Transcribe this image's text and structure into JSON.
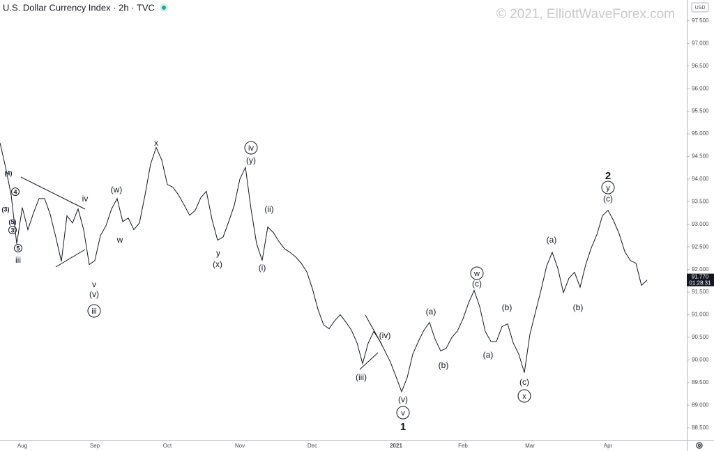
{
  "chart_data": {
    "type": "line",
    "title": "U.S. Dollar Currency Index · 2h · TVC",
    "watermark": "© 2021, ElliottWaveForex.com",
    "currency": "USD",
    "color": "#131722",
    "categories": [
      null,
      null,
      null,
      null,
      "Aug",
      null,
      null,
      null,
      null,
      null,
      null,
      null,
      null,
      null,
      null,
      null,
      null,
      "Sep",
      null,
      null,
      null,
      null,
      null,
      null,
      null,
      null,
      null,
      null,
      null,
      null,
      "Oct",
      null,
      null,
      null,
      null,
      null,
      null,
      null,
      null,
      null,
      null,
      null,
      null,
      "Nov",
      null,
      null,
      null,
      null,
      null,
      null,
      null,
      null,
      null,
      null,
      null,
      null,
      "Dec",
      null,
      null,
      null,
      null,
      null,
      null,
      null,
      null,
      null,
      null,
      null,
      null,
      null,
      null,
      "2021",
      null,
      null,
      null,
      null,
      null,
      null,
      null,
      null,
      null,
      null,
      null,
      "Feb",
      null,
      null,
      null,
      null,
      null,
      null,
      null,
      null,
      null,
      null,
      null,
      "Mar",
      null,
      null,
      null,
      null,
      null,
      null,
      null,
      null,
      null,
      null,
      null,
      null,
      null,
      "Apr",
      null,
      null,
      null,
      null,
      null,
      null,
      null
    ],
    "values": [
      94.8,
      94.26,
      93.65,
      92.57,
      93.37,
      92.88,
      93.25,
      93.57,
      93.57,
      93.22,
      92.72,
      92.18,
      93.19,
      93.03,
      93.34,
      92.88,
      92.11,
      92.2,
      92.75,
      92.97,
      93.34,
      93.57,
      93.06,
      93.14,
      92.88,
      93.03,
      93.65,
      94.33,
      94.7,
      94.42,
      93.88,
      93.82,
      93.65,
      93.43,
      93.2,
      93.31,
      93.59,
      93.73,
      93.11,
      92.65,
      92.72,
      93.06,
      93.42,
      94.0,
      94.26,
      93.34,
      92.57,
      92.2,
      92.94,
      92.82,
      92.62,
      92.46,
      92.38,
      92.28,
      92.14,
      91.95,
      91.58,
      91.12,
      90.78,
      90.69,
      90.87,
      91.0,
      90.84,
      90.66,
      90.38,
      89.92,
      90.37,
      90.63,
      90.44,
      90.2,
      89.95,
      89.63,
      89.3,
      89.61,
      90.13,
      90.41,
      90.66,
      90.83,
      90.46,
      90.2,
      90.26,
      90.5,
      90.64,
      90.91,
      91.26,
      91.54,
      91.18,
      90.63,
      90.41,
      90.41,
      90.74,
      90.8,
      90.38,
      90.13,
      89.72,
      90.57,
      91.06,
      91.55,
      92.08,
      92.38,
      92.03,
      91.49,
      91.81,
      91.94,
      91.61,
      92.11,
      92.48,
      92.77,
      93.19,
      93.31,
      93.08,
      92.79,
      92.4,
      92.2,
      92.14,
      91.65,
      91.77
    ],
    "last_value_label": "91.770",
    "countdown": "01:28:31",
    "ylim": [
      88.25,
      97.96
    ],
    "yticks": [
      {
        "value": 88.5,
        "label": "88.500"
      },
      {
        "value": 89,
        "label": "89.000"
      },
      {
        "value": 89.5,
        "label": "89.500"
      },
      {
        "value": 90,
        "label": "90.000"
      },
      {
        "value": 90.5,
        "label": "90.500"
      },
      {
        "value": 91,
        "label": "91.000"
      },
      {
        "value": 91.5,
        "label": "91.500"
      },
      {
        "value": 92,
        "label": "92.000"
      },
      {
        "value": 92.5,
        "label": "92.500"
      },
      {
        "value": 93,
        "label": "93.000"
      },
      {
        "value": 93.5,
        "label": "93.500"
      },
      {
        "value": 94,
        "label": "94.000"
      },
      {
        "value": 94.5,
        "label": "94.500"
      },
      {
        "value": 95,
        "label": "95.000"
      },
      {
        "value": 95.5,
        "label": "95.500"
      },
      {
        "value": 96,
        "label": "96.000"
      },
      {
        "value": 96.5,
        "label": "96.500"
      },
      {
        "value": 97,
        "label": "97.000"
      },
      {
        "value": 97.5,
        "label": "97.500"
      }
    ],
    "annotations": [
      {
        "text": "(4)",
        "circled": false
      },
      {
        "text": "4",
        "circled": true
      },
      {
        "text": "(3)",
        "circled": false
      },
      {
        "text": "(5)",
        "circled": false
      },
      {
        "text": "3",
        "circled": true
      },
      {
        "text": "5",
        "circled": true
      },
      {
        "text": "iii",
        "circled": false
      },
      {
        "text": "iv",
        "circled": false
      },
      {
        "text": "(w)",
        "circled": false
      },
      {
        "text": "w",
        "circled": false
      },
      {
        "text": "v",
        "circled": false
      },
      {
        "text": "(v)",
        "circled": false
      },
      {
        "text": "iii",
        "circled": true
      },
      {
        "text": "x",
        "circled": false
      },
      {
        "text": "y",
        "circled": false
      },
      {
        "text": "(x)",
        "circled": false
      },
      {
        "text": "iv",
        "circled": true
      },
      {
        "text": "(y)",
        "circled": false
      },
      {
        "text": "(ii)",
        "circled": false
      },
      {
        "text": "(i)",
        "circled": false
      },
      {
        "text": "(iv)",
        "circled": false
      },
      {
        "text": "(iii)",
        "circled": false
      },
      {
        "text": "(v)",
        "circled": false
      },
      {
        "text": "v",
        "circled": true
      },
      {
        "text": "1",
        "circled": false
      },
      {
        "text": "(a)",
        "circled": false
      },
      {
        "text": "(b)",
        "circled": false
      },
      {
        "text": "w",
        "circled": true
      },
      {
        "text": "(c)",
        "circled": false
      },
      {
        "text": "(a)",
        "circled": false
      },
      {
        "text": "(b)",
        "circled": false
      },
      {
        "text": "(c)",
        "circled": false
      },
      {
        "text": "x",
        "circled": true
      },
      {
        "text": "(a)",
        "circled": false
      },
      {
        "text": "(b)",
        "circled": false
      },
      {
        "text": "2",
        "circled": false
      },
      {
        "text": "y",
        "circled": true
      },
      {
        "text": "(c)",
        "circled": false
      }
    ]
  }
}
